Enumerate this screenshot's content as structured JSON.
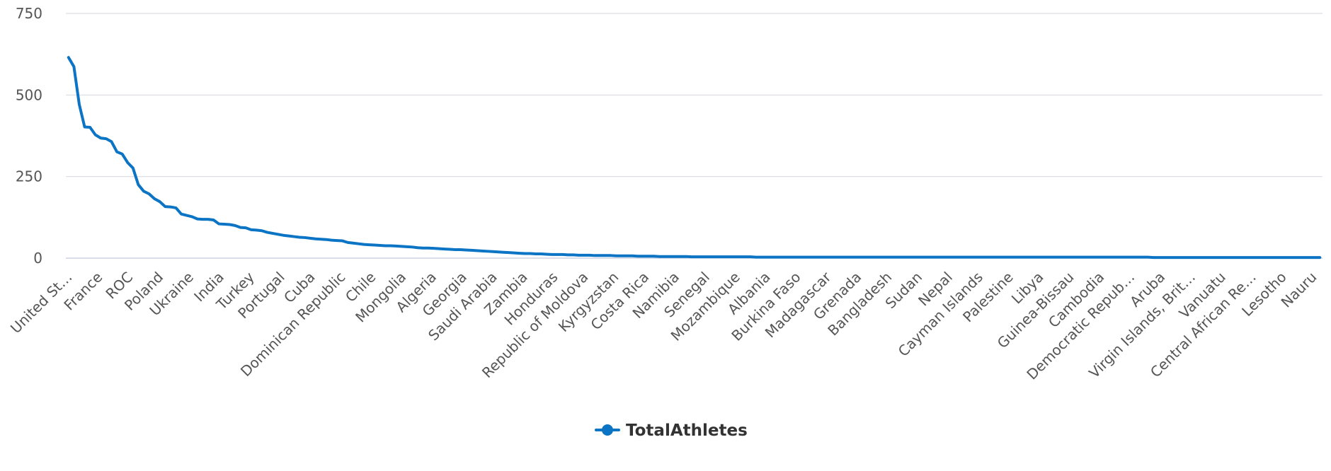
{
  "chart_data": {
    "type": "line",
    "title": "",
    "xlabel": "",
    "ylabel": "",
    "ylim": [
      0,
      750
    ],
    "yticks": [
      0,
      250,
      500,
      750
    ],
    "grid": true,
    "legend_position": "bottom-center",
    "x_tick_labels": [
      "United St…",
      "France",
      "ROC",
      "Poland",
      "Ukraine",
      "India",
      "Turkey",
      "Portugal",
      "Cuba",
      "Dominican Republic",
      "Chile",
      "Mongolia",
      "Algeria",
      "Georgia",
      "Saudi Arabia",
      "Zambia",
      "Honduras",
      "Republic of Moldova",
      "Kyrgyzstan",
      "Costa Rica",
      "Namibia",
      "Senegal",
      "Mozambique",
      "Albania",
      "Burkina Faso",
      "Madagascar",
      "Grenada",
      "Bangladesh",
      "Sudan",
      "Nepal",
      "Cayman Islands",
      "Palestine",
      "Libya",
      "Guinea-Bissau",
      "Cambodia",
      "Democratic Repub…",
      "Aruba",
      "Virgin Islands, Brit…",
      "Vanuatu",
      "Central African Re…",
      "Lesotho",
      "Nauru"
    ],
    "series": [
      {
        "name": "TotalAthletes",
        "color": "#0b74c4",
        "values": [
          615,
          587,
          471,
          402,
          401,
          378,
          368,
          366,
          357,
          326,
          319,
          293,
          276,
          225,
          205,
          197,
          182,
          173,
          158,
          157,
          154,
          135,
          131,
          127,
          120,
          119,
          119,
          117,
          105,
          104,
          103,
          100,
          94,
          93,
          87,
          86,
          84,
          79,
          76,
          73,
          70,
          68,
          66,
          64,
          63,
          61,
          59,
          58,
          57,
          55,
          54,
          53,
          48,
          46,
          44,
          42,
          41,
          40,
          39,
          38,
          38,
          37,
          36,
          35,
          34,
          32,
          31,
          31,
          30,
          29,
          28,
          27,
          26,
          26,
          25,
          24,
          23,
          22,
          21,
          20,
          19,
          18,
          17,
          16,
          15,
          14,
          14,
          13,
          13,
          12,
          11,
          11,
          11,
          10,
          10,
          9,
          9,
          9,
          8,
          8,
          8,
          8,
          7,
          7,
          7,
          7,
          6,
          6,
          6,
          6,
          5,
          5,
          5,
          5,
          5,
          5,
          4,
          4,
          4,
          4,
          4,
          4,
          4,
          4,
          4,
          4,
          4,
          4,
          3,
          3,
          3,
          3,
          3,
          3,
          3,
          3,
          3,
          3,
          3,
          3,
          3,
          3,
          3,
          3,
          3,
          3,
          3,
          3,
          3,
          3,
          3,
          3,
          3,
          3,
          3,
          3,
          3,
          3,
          3,
          3,
          3,
          3,
          3,
          3,
          3,
          3,
          3,
          3,
          3,
          3,
          3,
          3,
          3,
          3,
          3,
          3,
          3,
          3,
          3,
          3,
          3,
          3,
          3,
          3,
          3,
          3,
          3,
          3,
          3,
          3,
          3,
          3,
          3,
          3,
          3,
          3,
          3,
          3,
          3,
          3,
          3,
          3,
          2,
          2,
          2,
          2,
          2,
          2,
          2,
          2,
          2,
          2,
          2,
          2,
          2,
          2,
          2,
          2,
          2,
          2,
          2,
          2,
          2,
          2,
          2,
          2,
          2,
          2,
          2,
          2,
          2,
          2,
          2,
          2
        ]
      }
    ]
  }
}
